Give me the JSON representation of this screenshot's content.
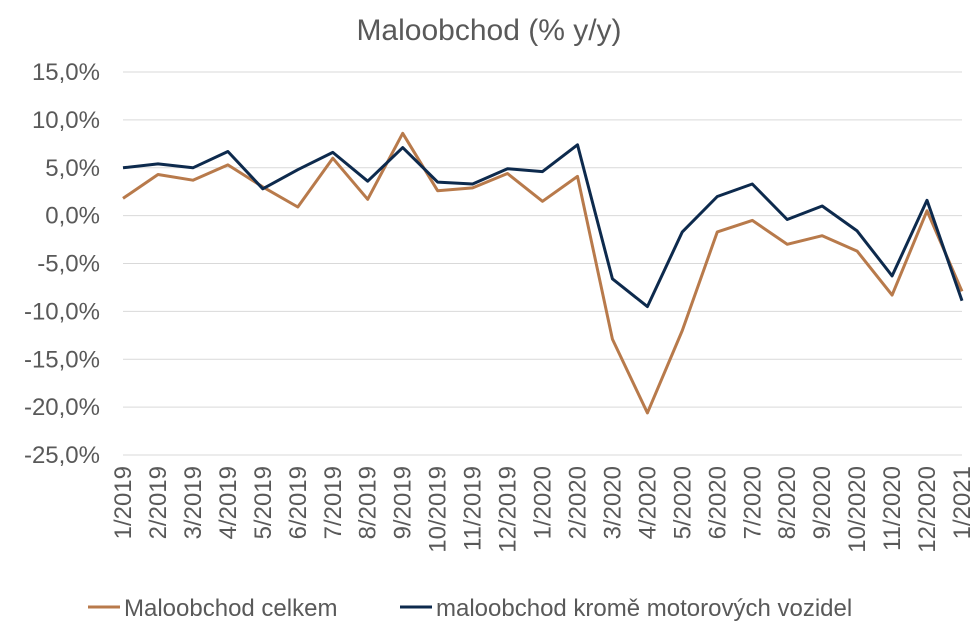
{
  "chart_data": {
    "type": "line",
    "title": "Maloobchod  (% y/y)",
    "x": [
      "1/2019",
      "2/2019",
      "3/2019",
      "4/2019",
      "5/2019",
      "6/2019",
      "7/2019",
      "8/2019",
      "9/2019",
      "10/2019",
      "11/2019",
      "12/2019",
      "1/2020",
      "2/2020",
      "3/2020",
      "4/2020",
      "5/2020",
      "6/2020",
      "7/2020",
      "8/2020",
      "9/2020",
      "10/2020",
      "11/2020",
      "12/2020",
      "1/2021"
    ],
    "y_ticks": [
      "15,0%",
      "10,0%",
      "5,0%",
      "0,0%",
      "-5,0%",
      "-10,0%",
      "-15,0%",
      "-20,0%",
      "-25,0%"
    ],
    "ylim": [
      -25,
      15
    ],
    "ytick_step": 5,
    "grid": true,
    "legend_position": "bottom",
    "series": [
      {
        "name": "Maloobchod celkem",
        "color": "#b87a4b",
        "values": [
          1.8,
          4.3,
          3.7,
          5.3,
          3.0,
          0.9,
          6.0,
          1.7,
          8.6,
          2.6,
          2.9,
          4.4,
          1.5,
          4.1,
          -12.9,
          -20.6,
          -12.0,
          -1.7,
          -0.5,
          -3.0,
          -2.1,
          -3.7,
          -8.3,
          0.5,
          -7.9
        ]
      },
      {
        "name": "maloobchod kromě motorových vozidel",
        "color": "#0d2a4d",
        "values": [
          5.0,
          5.4,
          5.0,
          6.7,
          2.8,
          4.8,
          6.6,
          3.6,
          7.1,
          3.5,
          3.3,
          4.9,
          4.6,
          7.4,
          -6.6,
          -9.5,
          -1.7,
          2.0,
          3.3,
          -0.4,
          1.0,
          -1.6,
          -6.3,
          1.6,
          -8.9
        ]
      }
    ]
  }
}
